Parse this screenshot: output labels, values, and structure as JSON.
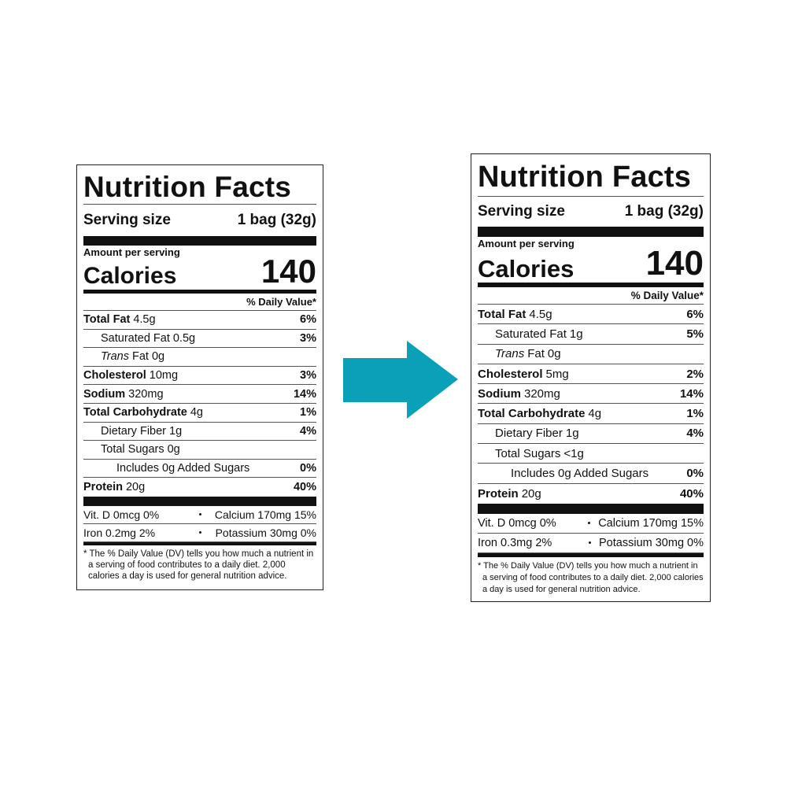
{
  "labels": [
    {
      "title": "Nutrition Facts",
      "serving_label": "Serving size",
      "serving_value": "1 bag (32g)",
      "amount_per_serving": "Amount per serving",
      "calories_label": "Calories",
      "calories_value": "140",
      "dv_header": "% Daily Value*",
      "rows": [
        {
          "name": "Total Fat",
          "amount": "4.5g",
          "dv": "6%"
        },
        {
          "name": "Saturated Fat",
          "amount": "0.5g",
          "dv": "3%"
        },
        {
          "name_italic": "Trans",
          "name": "Fat",
          "amount": "0g"
        },
        {
          "name": "Cholesterol",
          "amount": "10mg",
          "dv": "3%"
        },
        {
          "name": "Sodium",
          "amount": "320mg",
          "dv": "14%"
        },
        {
          "name": "Total Carbohydrate",
          "amount": "4g",
          "dv": "1%"
        },
        {
          "name": "Dietary Fiber",
          "amount": "1g",
          "dv": "4%"
        },
        {
          "name": "Total Sugars",
          "amount": "0g"
        },
        {
          "name": "Includes 0g Added Sugars",
          "dv": "0%"
        },
        {
          "name": "Protein",
          "amount": "20g",
          "dv": "40%"
        }
      ],
      "vitamins": [
        {
          "left": "Vit. D 0mcg 0%",
          "right": "Calcium 170mg 15%"
        },
        {
          "left": "Iron 0.2mg 2%",
          "right": "Potassium 30mg 0%"
        }
      ],
      "footnote": "* The % Daily Value (DV) tells you how much a nutrient in a serving of food contributes to a daily diet. 2,000 calories a day is used for general nutrition advice."
    },
    {
      "title": "Nutrition Facts",
      "serving_label": "Serving size",
      "serving_value": "1 bag (32g)",
      "amount_per_serving": "Amount per serving",
      "calories_label": "Calories",
      "calories_value": "140",
      "dv_header": "% Daily Value*",
      "rows": [
        {
          "name": "Total Fat",
          "amount": "4.5g",
          "dv": "6%"
        },
        {
          "name": "Saturated Fat",
          "amount": "1g",
          "dv": "5%"
        },
        {
          "name_italic": "Trans",
          "name": "Fat",
          "amount": "0g"
        },
        {
          "name": "Cholesterol",
          "amount": "5mg",
          "dv": "2%"
        },
        {
          "name": "Sodium",
          "amount": "320mg",
          "dv": "14%"
        },
        {
          "name": "Total Carbohydrate",
          "amount": "4g",
          "dv": "1%"
        },
        {
          "name": "Dietary Fiber",
          "amount": "1g",
          "dv": "4%"
        },
        {
          "name": "Total Sugars",
          "amount": "<1g"
        },
        {
          "name": "Includes 0g Added Sugars",
          "dv": "0%"
        },
        {
          "name": "Protein",
          "amount": "20g",
          "dv": "40%"
        }
      ],
      "vitamins": [
        {
          "left": "Vit. D 0mcg 0%",
          "right": "Calcium 170mg 15%"
        },
        {
          "left": "Iron 0.3mg 2%",
          "right": "Potassium 30mg 0%"
        }
      ],
      "footnote": "* The % Daily Value (DV) tells you how much a nutrient in a serving of food contributes to a daily diet. 2,000 calories a day is used for general nutrition advice."
    }
  ]
}
